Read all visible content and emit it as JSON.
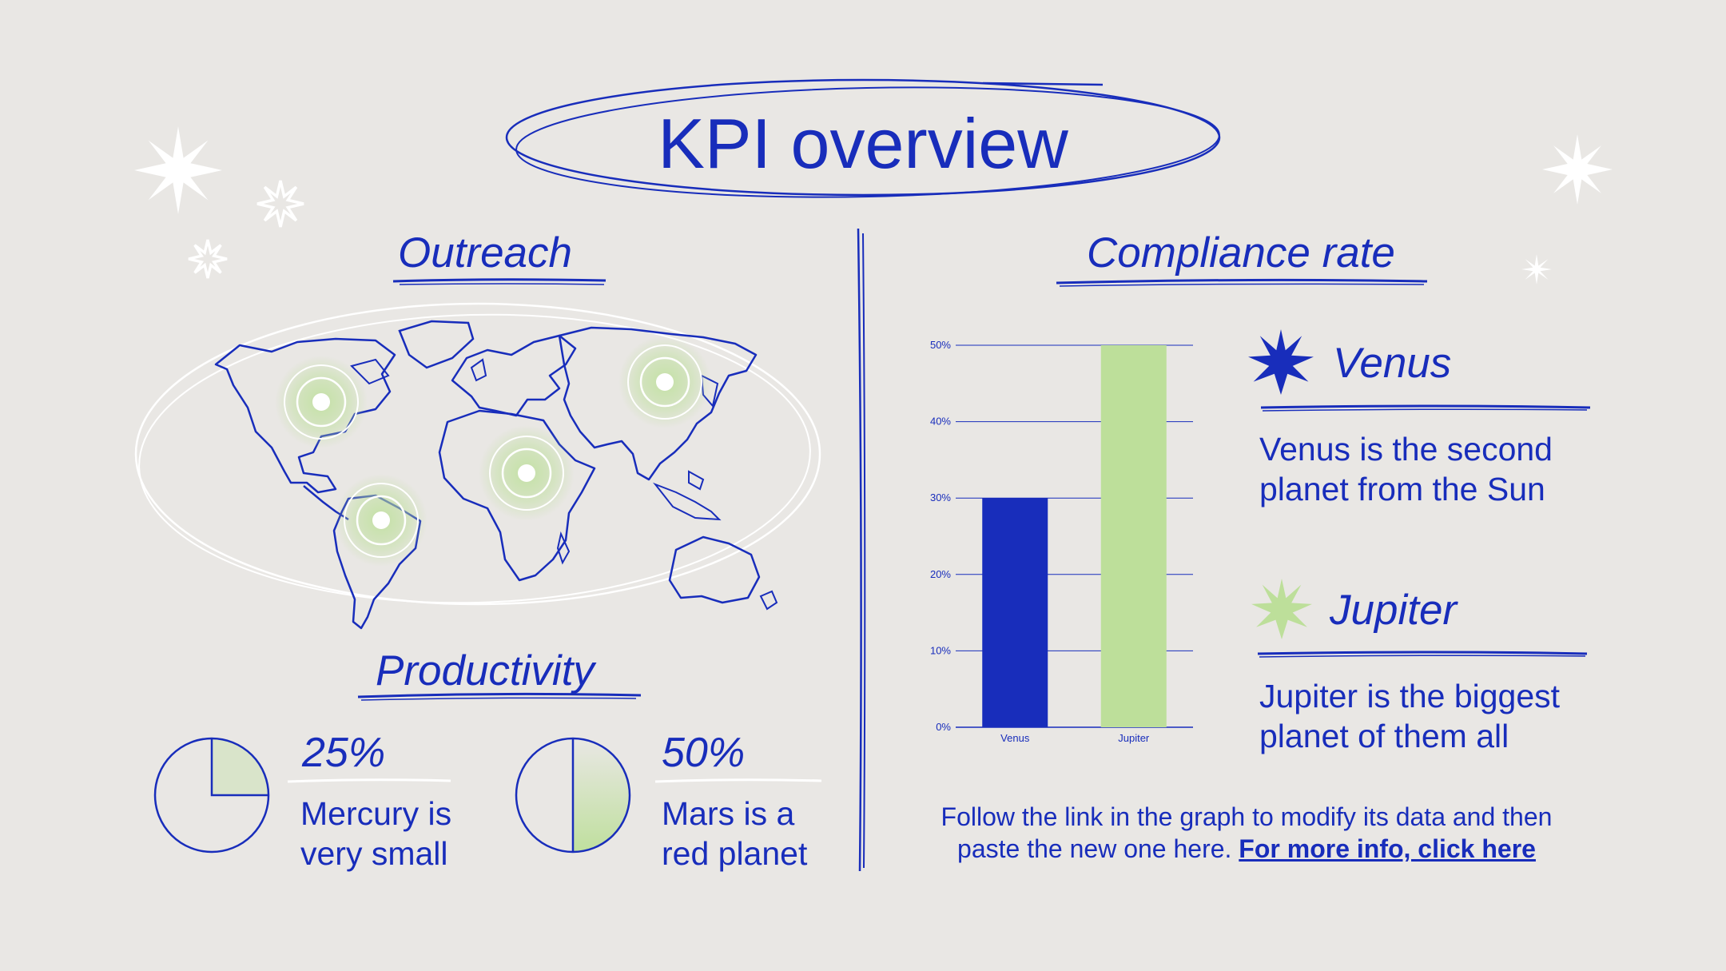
{
  "title": "KPI overview",
  "sections": {
    "outreach": "Outreach",
    "productivity": "Productivity",
    "compliance": "Compliance rate"
  },
  "productivity": [
    {
      "percent": "25%",
      "text_line1": "Mercury is",
      "text_line2": "very small",
      "fraction": 0.25
    },
    {
      "percent": "50%",
      "text_line1": "Mars is a",
      "text_line2": "red planet",
      "fraction": 0.5
    }
  ],
  "legend": [
    {
      "name": "Venus",
      "line1": "Venus is the second",
      "line2": "planet from the Sun",
      "color": "#182dbb"
    },
    {
      "name": "Jupiter",
      "line1": "Jupiter is the biggest",
      "line2": "planet of them all",
      "color": "#bddf9a"
    }
  ],
  "footer": {
    "text_line1": "Follow the link in the graph to modify its data and then",
    "text_line2": "paste the new one here.",
    "link": "For more info, click here"
  },
  "colors": {
    "primary": "#182dbb",
    "accent": "#bddf9a",
    "background": "#e9e7e4"
  },
  "chart_data": {
    "type": "bar",
    "categories": [
      "Venus",
      "Jupiter"
    ],
    "values": [
      30,
      50
    ],
    "colors": [
      "#182dbb",
      "#bddf9a"
    ],
    "yticks": [
      "0%",
      "10%",
      "20%",
      "30%",
      "40%",
      "50%"
    ],
    "ylim": [
      0,
      50
    ],
    "grid": true
  }
}
